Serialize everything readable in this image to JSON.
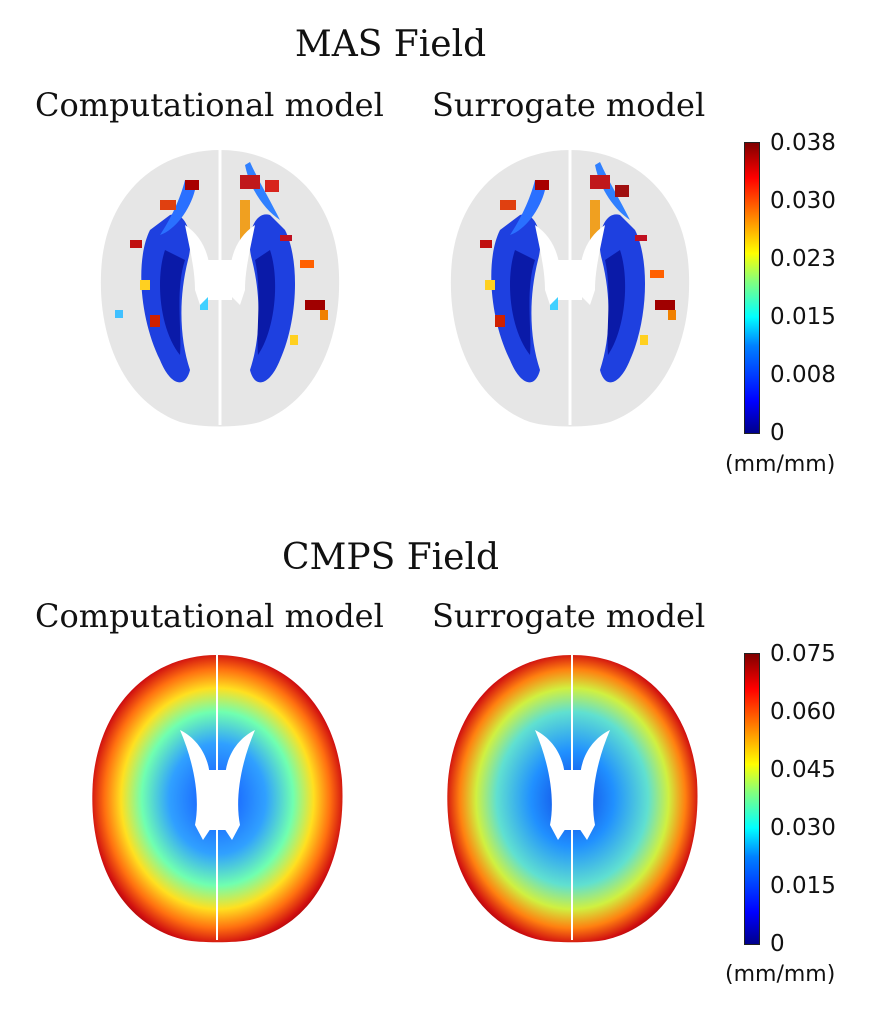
{
  "sections": [
    {
      "title": "MAS Field",
      "left_label": "Computational model",
      "right_label": "Surrogate model",
      "colorbar": {
        "ticks": [
          "0.038",
          "0.030",
          "0.023",
          "0.015",
          "0.008",
          "0"
        ],
        "unit": "(mm/mm)",
        "colormap": "jet"
      }
    },
    {
      "title": "CMPS Field",
      "left_label": "Computational model",
      "right_label": "Surrogate model",
      "colorbar": {
        "ticks": [
          "0.075",
          "0.060",
          "0.045",
          "0.030",
          "0.015",
          "0"
        ],
        "unit": "(mm/mm)",
        "colormap": "jet"
      }
    }
  ],
  "colors": {
    "brain_background": "#e6e6e6",
    "ventricle": "#ffffff",
    "low": "#00008b",
    "mid": "#00ffff",
    "high": "#8b0000"
  }
}
